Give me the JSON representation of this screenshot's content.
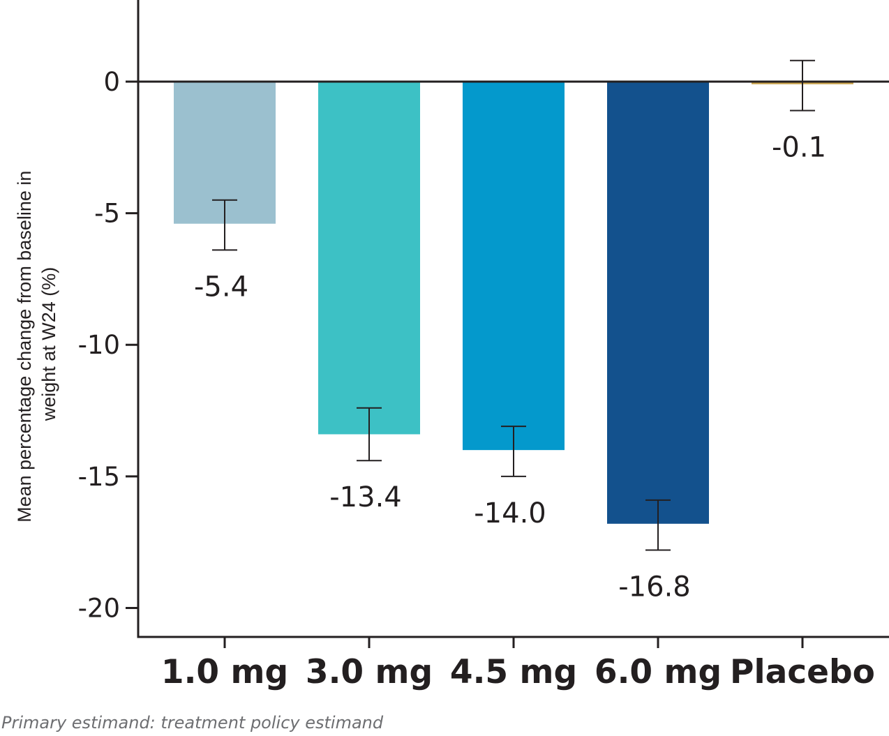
{
  "chart_data": {
    "type": "bar",
    "categories": [
      "1.0 mg",
      "3.0 mg",
      "4.5 mg",
      "6.0 mg",
      "Placebo"
    ],
    "values": [
      -5.4,
      -13.4,
      -14.0,
      -16.8,
      -0.1
    ],
    "value_labels": [
      "-5.4",
      "-13.4",
      "-14.0",
      "-16.8",
      "-0.1"
    ],
    "error_bars": [
      {
        "low": -6.4,
        "high": -4.5
      },
      {
        "low": -14.4,
        "high": -12.4
      },
      {
        "low": -15.0,
        "high": -13.1
      },
      {
        "low": -17.8,
        "high": -15.9
      },
      {
        "low": -1.1,
        "high": 0.8
      }
    ],
    "colors": [
      "#9bc0cf",
      "#3dc1c5",
      "#0499cc",
      "#13518d",
      "#c9a24a"
    ],
    "ylabel_line1": "Mean percentage change from baseline in",
    "ylabel_line2": "weight at W24 (%)",
    "yticks": [
      0,
      -5,
      -10,
      -15,
      -20
    ],
    "ytick_labels": [
      "0",
      "-5",
      "-10",
      "-15",
      "-20"
    ],
    "ylim": [
      -21.1,
      3.1
    ],
    "grid": false,
    "legend": "none"
  },
  "footnote": "Primary estimand: treatment policy estimand"
}
